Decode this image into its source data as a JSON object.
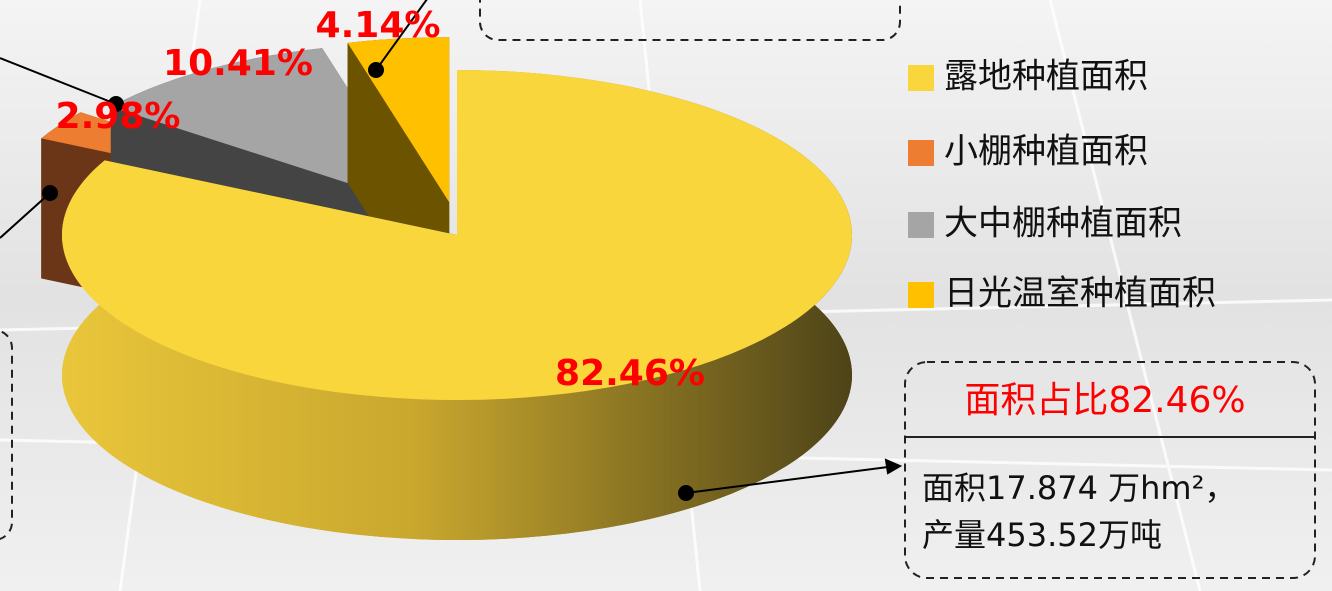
{
  "chart_data": {
    "type": "pie",
    "categories": [
      "露地种植面积",
      "小棚种植面积",
      "大中棚种植面积",
      "日光温室种植面积"
    ],
    "values": [
      82.46,
      2.98,
      10.41,
      4.14
    ],
    "value_labels": [
      "82.46%",
      "2.98%",
      "10.41%",
      "4.14%"
    ],
    "colors": [
      "#f9d63c",
      "#ed7d31",
      "#a5a5a5",
      "#ffc000"
    ],
    "side_colors": [
      "#b89a2a",
      "#6b3617",
      "#444444",
      "#6b5300"
    ],
    "legend": "right",
    "annotations": [
      {
        "title": "面积占比82.46%",
        "lines": [
          "面积17.874 万hm²，",
          "产量453.52万吨"
        ]
      }
    ]
  }
}
